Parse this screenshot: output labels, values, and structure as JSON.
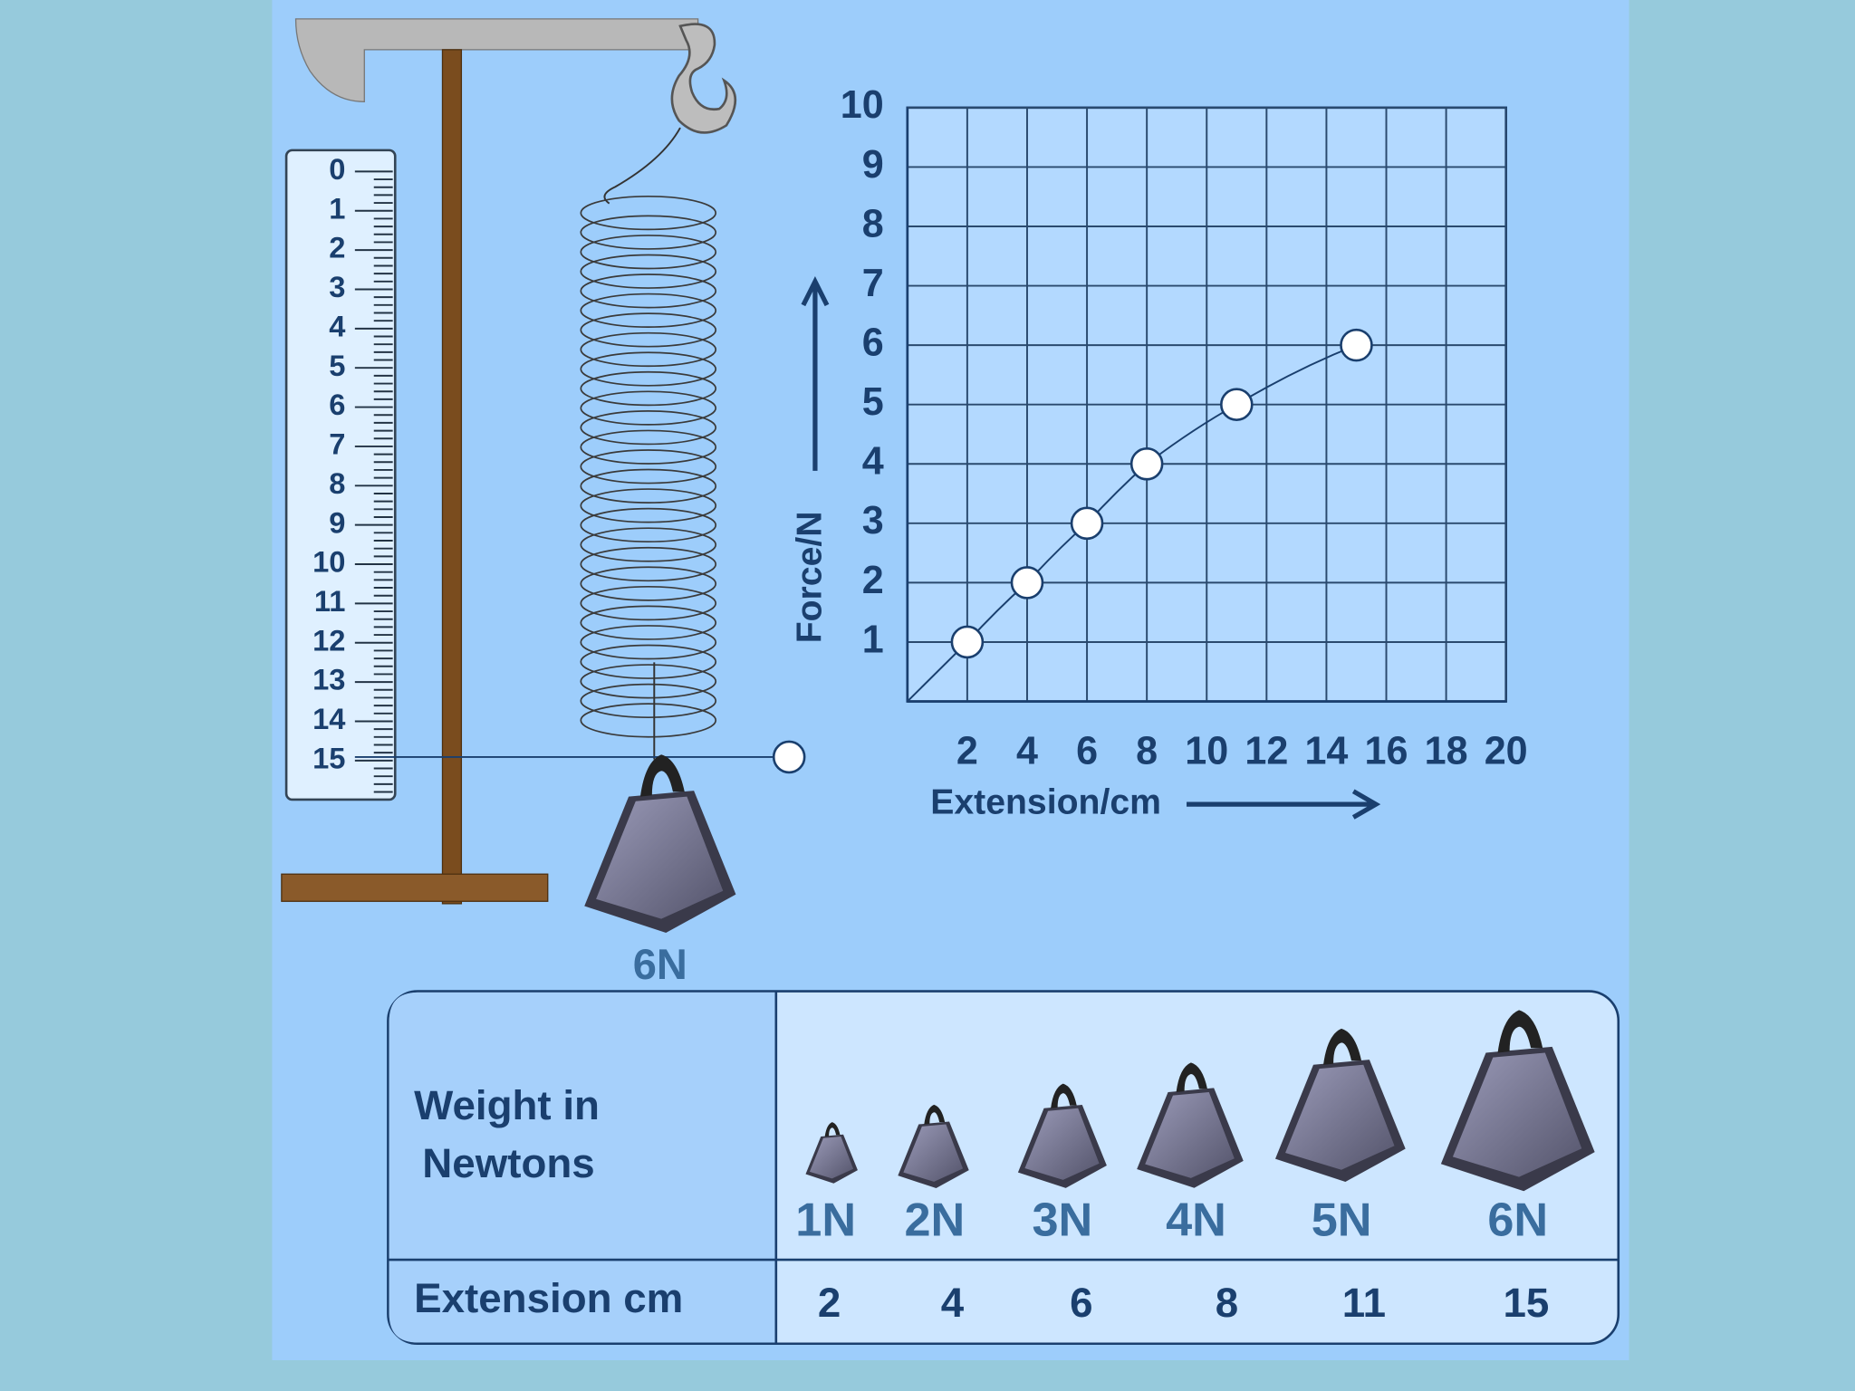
{
  "chart_data": {
    "type": "line",
    "x_label": "Extension/cm",
    "y_label": "Force/N",
    "x": [
      2,
      4,
      6,
      8,
      11,
      15
    ],
    "series": [
      {
        "color": "#1a3f6e",
        "values": [
          1,
          2,
          3,
          4,
          5,
          6
        ]
      }
    ],
    "xlim": [
      0,
      20
    ],
    "xticks": [
      2,
      4,
      6,
      8,
      10,
      12,
      14,
      16,
      18,
      20
    ],
    "ylim": [
      0,
      10
    ],
    "yticks": [
      1,
      2,
      3,
      4,
      5,
      6,
      7,
      8,
      9,
      10
    ],
    "grid": true
  },
  "ruler": {
    "labels": [
      0,
      1,
      2,
      3,
      4,
      5,
      6,
      7,
      8,
      9,
      10,
      11,
      12,
      13,
      14,
      15
    ]
  },
  "hanging_weight": {
    "label": "6N"
  },
  "table": {
    "row_header_1": [
      "Weight in",
      "Newtons"
    ],
    "row_header_2": "Extension cm",
    "weights": [
      "1N",
      "2N",
      "3N",
      "4N",
      "5N",
      "6N"
    ],
    "extensions": [
      2,
      4,
      6,
      8,
      11,
      15
    ]
  }
}
